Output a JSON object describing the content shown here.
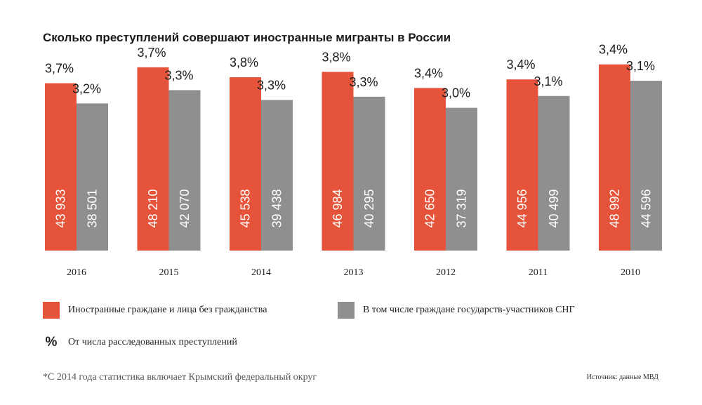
{
  "title": "Сколько преступлений совершают иностранные мигранты в России",
  "colors": {
    "foreign": "#e5543a",
    "cis": "#8f8f8f"
  },
  "legend": {
    "foreign": "Иностранные граждане и лица без гражданства",
    "cis": "В том числе граждане государств-участников СНГ",
    "pct_symbol": "%",
    "pct": "От числа расследованных преступлений"
  },
  "footnote": "*С 2014 года статистика включает Крымский федеральный округ",
  "source": "Источник: данные МВД",
  "chart_data": {
    "type": "bar",
    "categories": [
      "2016",
      "2015",
      "2014",
      "2013",
      "2012",
      "2011",
      "2010"
    ],
    "series": [
      {
        "name": "Иностранные граждане и лица без гражданства",
        "values": [
          43933,
          48210,
          45538,
          46984,
          42650,
          44956,
          48992
        ],
        "labels": [
          "43 933",
          "48 210",
          "45 538",
          "46 984",
          "42 650",
          "44 956",
          "48 992"
        ],
        "percent": [
          "3,7%",
          "3,7%",
          "3,8%",
          "3,8%",
          "3,4%",
          "3,4%",
          "3,4%"
        ]
      },
      {
        "name": "В том числе граждане государств-участников СНГ",
        "values": [
          38501,
          42070,
          39438,
          40295,
          37319,
          40499,
          44596
        ],
        "labels": [
          "38 501",
          "42 070",
          "39 438",
          "40 295",
          "37 319",
          "40 499",
          "44 596"
        ],
        "percent": [
          "3,2%",
          "3,3%",
          "3,3%",
          "3,3%",
          "3,0%",
          "3,1%",
          "3,1%"
        ]
      }
    ]
  }
}
